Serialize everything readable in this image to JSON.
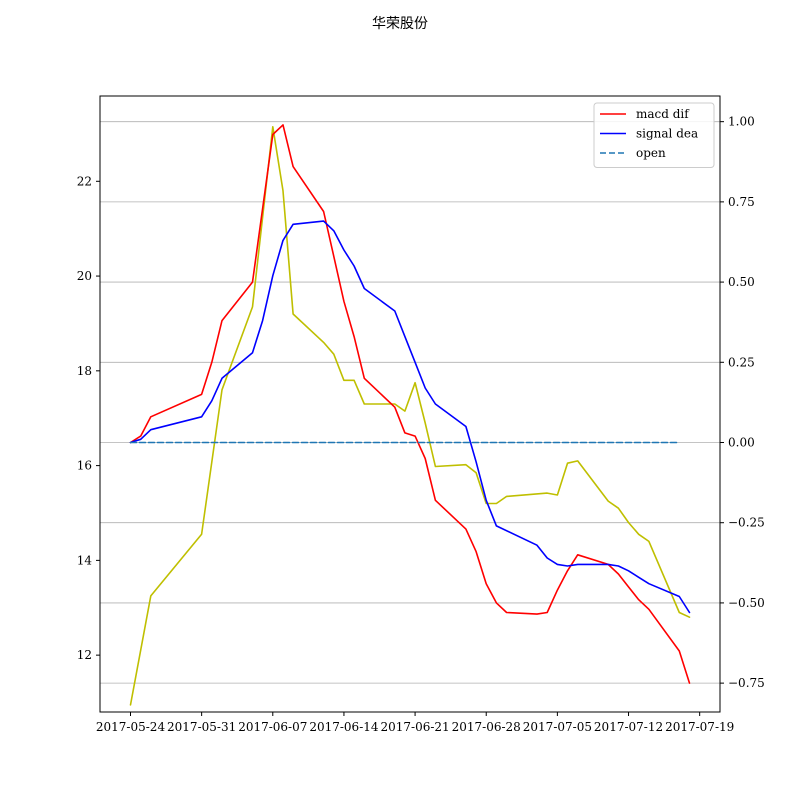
{
  "chart_data": {
    "type": "line",
    "title": "华荣股份",
    "x_ticks": [
      "2017-05-24",
      "2017-05-31",
      "2017-06-07",
      "2017-06-14",
      "2017-06-21",
      "2017-06-28",
      "2017-07-05",
      "2017-07-12",
      "2017-07-19"
    ],
    "x_range": [
      "2017-05-21",
      "2017-07-21"
    ],
    "left_axis": {
      "ylim": [
        10.8,
        23.8
      ],
      "ticks": [
        "12",
        "14",
        "16",
        "18",
        "20",
        "22"
      ]
    },
    "right_axis": {
      "ylim": [
        -0.84,
        1.08
      ],
      "ticks": [
        "1.00",
        "0.75",
        "0.50",
        "0.25",
        "0.00",
        "−0.25",
        "−0.50",
        "−0.75"
      ],
      "grid": true
    },
    "legend_position": "upper right",
    "series": [
      {
        "name": "macd dif",
        "axis": "right",
        "color": "#ff0000",
        "style": "solid",
        "points": [
          [
            "2017-05-24",
            0.0
          ],
          [
            "2017-05-25",
            0.02
          ],
          [
            "2017-05-26",
            0.08
          ],
          [
            "2017-05-31",
            0.15
          ],
          [
            "2017-06-01",
            0.25
          ],
          [
            "2017-06-02",
            0.38
          ],
          [
            "2017-06-05",
            0.5
          ],
          [
            "2017-06-07",
            0.96
          ],
          [
            "2017-06-08",
            0.99
          ],
          [
            "2017-06-09",
            0.86
          ],
          [
            "2017-06-12",
            0.72
          ],
          [
            "2017-06-13",
            0.58
          ],
          [
            "2017-06-14",
            0.44
          ],
          [
            "2017-06-15",
            0.33
          ],
          [
            "2017-06-16",
            0.2
          ],
          [
            "2017-06-19",
            0.11
          ],
          [
            "2017-06-20",
            0.03
          ],
          [
            "2017-06-21",
            0.02
          ],
          [
            "2017-06-22",
            -0.05
          ],
          [
            "2017-06-23",
            -0.18
          ],
          [
            "2017-06-26",
            -0.27
          ],
          [
            "2017-06-27",
            -0.34
          ],
          [
            "2017-06-28",
            -0.44
          ],
          [
            "2017-06-29",
            -0.5
          ],
          [
            "2017-06-30",
            -0.53
          ],
          [
            "2017-07-03",
            -0.535
          ],
          [
            "2017-07-04",
            -0.53
          ],
          [
            "2017-07-05",
            -0.46
          ],
          [
            "2017-07-06",
            -0.4
          ],
          [
            "2017-07-07",
            -0.35
          ],
          [
            "2017-07-10",
            -0.38
          ],
          [
            "2017-07-11",
            -0.41
          ],
          [
            "2017-07-12",
            -0.45
          ],
          [
            "2017-07-13",
            -0.49
          ],
          [
            "2017-07-14",
            -0.52
          ],
          [
            "2017-07-17",
            -0.65
          ],
          [
            "2017-07-18",
            -0.75
          ]
        ]
      },
      {
        "name": "signal dea",
        "axis": "right",
        "color": "#0000ff",
        "style": "solid",
        "points": [
          [
            "2017-05-24",
            0.0
          ],
          [
            "2017-05-25",
            0.01
          ],
          [
            "2017-05-26",
            0.04
          ],
          [
            "2017-05-31",
            0.08
          ],
          [
            "2017-06-01",
            0.13
          ],
          [
            "2017-06-02",
            0.2
          ],
          [
            "2017-06-05",
            0.28
          ],
          [
            "2017-06-06",
            0.38
          ],
          [
            "2017-06-07",
            0.52
          ],
          [
            "2017-06-08",
            0.63
          ],
          [
            "2017-06-09",
            0.68
          ],
          [
            "2017-06-12",
            0.69
          ],
          [
            "2017-06-13",
            0.66
          ],
          [
            "2017-06-14",
            0.6
          ],
          [
            "2017-06-15",
            0.55
          ],
          [
            "2017-06-16",
            0.48
          ],
          [
            "2017-06-19",
            0.41
          ],
          [
            "2017-06-20",
            0.33
          ],
          [
            "2017-06-21",
            0.25
          ],
          [
            "2017-06-22",
            0.17
          ],
          [
            "2017-06-23",
            0.12
          ],
          [
            "2017-06-26",
            0.05
          ],
          [
            "2017-06-27",
            -0.06
          ],
          [
            "2017-06-28",
            -0.18
          ],
          [
            "2017-06-29",
            -0.26
          ],
          [
            "2017-07-03",
            -0.32
          ],
          [
            "2017-07-04",
            -0.36
          ],
          [
            "2017-07-05",
            -0.38
          ],
          [
            "2017-07-06",
            -0.385
          ],
          [
            "2017-07-07",
            -0.38
          ],
          [
            "2017-07-10",
            -0.38
          ],
          [
            "2017-07-11",
            -0.385
          ],
          [
            "2017-07-12",
            -0.4
          ],
          [
            "2017-07-13",
            -0.42
          ],
          [
            "2017-07-14",
            -0.44
          ],
          [
            "2017-07-17",
            -0.48
          ],
          [
            "2017-07-18",
            -0.53
          ]
        ]
      },
      {
        "name": "open",
        "axis": "right",
        "color": "#1f77b4",
        "style": "dashed",
        "points": [
          [
            "2017-05-24",
            0.0
          ],
          [
            "2017-07-17",
            0.0
          ]
        ]
      },
      {
        "name": "",
        "axis": "left",
        "color": "#bfbf00",
        "style": "solid",
        "points": [
          [
            "2017-05-24",
            10.95
          ],
          [
            "2017-05-26",
            13.25
          ],
          [
            "2017-05-31",
            14.55
          ],
          [
            "2017-06-02",
            17.6
          ],
          [
            "2017-06-05",
            19.35
          ],
          [
            "2017-06-07",
            23.15
          ],
          [
            "2017-06-08",
            21.8
          ],
          [
            "2017-06-09",
            19.2
          ],
          [
            "2017-06-12",
            18.6
          ],
          [
            "2017-06-13",
            18.35
          ],
          [
            "2017-06-14",
            17.8
          ],
          [
            "2017-06-15",
            17.8
          ],
          [
            "2017-06-16",
            17.3
          ],
          [
            "2017-06-19",
            17.3
          ],
          [
            "2017-06-20",
            17.15
          ],
          [
            "2017-06-21",
            17.75
          ],
          [
            "2017-06-22",
            16.9
          ],
          [
            "2017-06-23",
            15.98
          ],
          [
            "2017-06-26",
            16.02
          ],
          [
            "2017-06-27",
            15.85
          ],
          [
            "2017-06-28",
            15.2
          ],
          [
            "2017-06-29",
            15.2
          ],
          [
            "2017-06-30",
            15.35
          ],
          [
            "2017-07-04",
            15.42
          ],
          [
            "2017-07-05",
            15.38
          ],
          [
            "2017-07-06",
            16.05
          ],
          [
            "2017-07-07",
            16.1
          ],
          [
            "2017-07-10",
            15.25
          ],
          [
            "2017-07-11",
            15.1
          ],
          [
            "2017-07-12",
            14.8
          ],
          [
            "2017-07-13",
            14.55
          ],
          [
            "2017-07-14",
            14.4
          ],
          [
            "2017-07-17",
            12.9
          ],
          [
            "2017-07-18",
            12.8
          ]
        ]
      }
    ]
  }
}
